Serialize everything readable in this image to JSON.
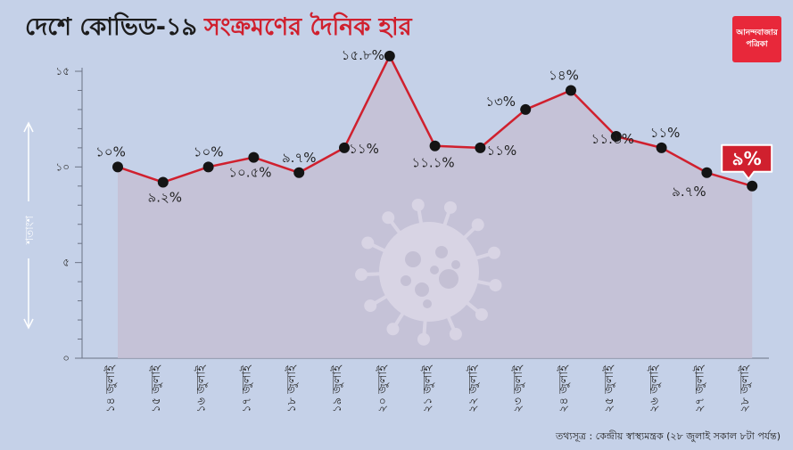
{
  "header": {
    "title_part1": "দেশে কোভিড-১৯",
    "title_part2": "সংক্রমণের দৈনিক হার"
  },
  "logo": {
    "line1": "আনন্দবাজার",
    "line2": "পত্রিকা"
  },
  "source_note": "তথ্যসূত্র : কেন্দ্রীয় স্বাস্থ্যমন্ত্রক (২৮ জুলাই সকাল ৮টা পর্যন্ত)",
  "colors": {
    "background": "#c5d1e8",
    "line": "#d0202e",
    "area": "#c4bfd3",
    "point": "#141414",
    "highlight": "#d0202e"
  },
  "chart_data": {
    "type": "line",
    "title": "",
    "ylabel": "শতাংশ",
    "ylim": [
      0,
      15
    ],
    "yticks": [
      0,
      5,
      10,
      15
    ],
    "ytick_labels": [
      "০",
      "৫",
      "১০",
      "১৫"
    ],
    "categories": [
      "১৪ জুলাই",
      "১৫ জুলাই",
      "১৬ জুলাই",
      "১৭ জুলাই",
      "১৮ জুলাই",
      "১৯ জুলাই",
      "২০ জুলাই",
      "২১ জুলাই",
      "২২ জুলাই",
      "২৩ জুলাই",
      "২৪ জুলাই",
      "২৫ জুলাই",
      "২৬ জুলাই",
      "২৭ জুলাই",
      "২৮ জুলাই"
    ],
    "values": [
      10,
      9.2,
      10,
      10.5,
      9.7,
      11,
      15.8,
      11.1,
      11,
      13,
      14,
      11.6,
      11,
      9.7,
      9
    ],
    "value_labels": [
      "১০%",
      "৯.২%",
      "১০%",
      "১০.৫%",
      "৯.৭%",
      "১১%",
      "১৫.৮%",
      "১১.১%",
      "১১%",
      "১৩%",
      "১৪%",
      "১১.৬%",
      "১১%",
      "৯.৭%",
      "৯%"
    ],
    "highlight_last": true,
    "grid": false
  }
}
